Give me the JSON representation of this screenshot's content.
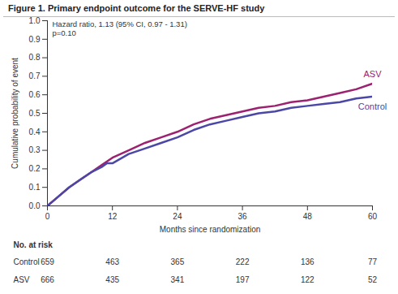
{
  "chart_data": {
    "type": "line",
    "title": "Figure 1. Primary endpoint outcome for the SERVE-HF study",
    "annotations": [
      "Hazard ratio, 1.13 (95% CI, 0.97 - 1.31)",
      "p=0.10"
    ],
    "x_label": "Months since randomization",
    "y_label": "Cumulative probability of event",
    "xlim": [
      0,
      60
    ],
    "xticks": [
      0,
      12,
      24,
      36,
      48,
      60
    ],
    "ylim": [
      0,
      1
    ],
    "yticks": [
      {
        "value": 0,
        "label": "0.0"
      },
      {
        "value": 0.1,
        "label": "0.1"
      },
      {
        "value": 0.2,
        "label": "0.2"
      },
      {
        "value": 0.3,
        "label": "0.3"
      },
      {
        "value": 0.4,
        "label": "0.4"
      },
      {
        "value": 0.5,
        "label": "0.5"
      },
      {
        "value": 0.6,
        "label": "0.6"
      },
      {
        "value": 0.7,
        "label": "0.7"
      },
      {
        "value": 0.8,
        "label": "0.8"
      },
      {
        "value": 0.9,
        "label": "0.9"
      },
      {
        "value": 1,
        "label": "1.0"
      }
    ],
    "grid": false,
    "x": [
      0,
      2,
      4,
      6,
      8,
      10,
      11,
      12,
      15,
      18,
      21,
      24,
      27,
      30,
      33,
      36,
      39,
      42,
      45,
      48,
      51,
      54,
      57,
      60
    ],
    "series": [
      {
        "name": "ASV",
        "color": "#9c2271",
        "values": [
          0,
          0.05,
          0.1,
          0.14,
          0.18,
          0.22,
          0.24,
          0.26,
          0.3,
          0.34,
          0.37,
          0.4,
          0.44,
          0.47,
          0.49,
          0.51,
          0.53,
          0.54,
          0.56,
          0.57,
          0.59,
          0.61,
          0.63,
          0.66
        ]
      },
      {
        "name": "Control",
        "color": "#4b47a6",
        "values": [
          0,
          0.05,
          0.1,
          0.14,
          0.18,
          0.21,
          0.23,
          0.23,
          0.28,
          0.31,
          0.34,
          0.37,
          0.41,
          0.44,
          0.46,
          0.48,
          0.5,
          0.51,
          0.53,
          0.54,
          0.55,
          0.56,
          0.58,
          0.59
        ]
      }
    ],
    "at_risk": {
      "title": "No. at risk",
      "x": [
        0,
        12,
        24,
        36,
        48,
        60
      ],
      "rows": [
        {
          "name": "Control",
          "values": [
            659,
            463,
            365,
            222,
            136,
            77
          ]
        },
        {
          "name": "ASV",
          "values": [
            666,
            435,
            341,
            197,
            122,
            52
          ]
        }
      ]
    }
  }
}
